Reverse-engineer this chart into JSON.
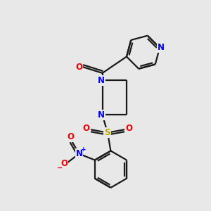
{
  "bg_color": "#e8e8e8",
  "bond_color": "#1a1a1a",
  "nitrogen_color": "#0000ee",
  "oxygen_color": "#ee0000",
  "sulfur_color": "#bbaa00",
  "line_width": 1.6,
  "fig_width": 3.0,
  "fig_height": 3.0,
  "dpi": 100,
  "xlim": [
    0,
    10
  ],
  "ylim": [
    0,
    10
  ]
}
